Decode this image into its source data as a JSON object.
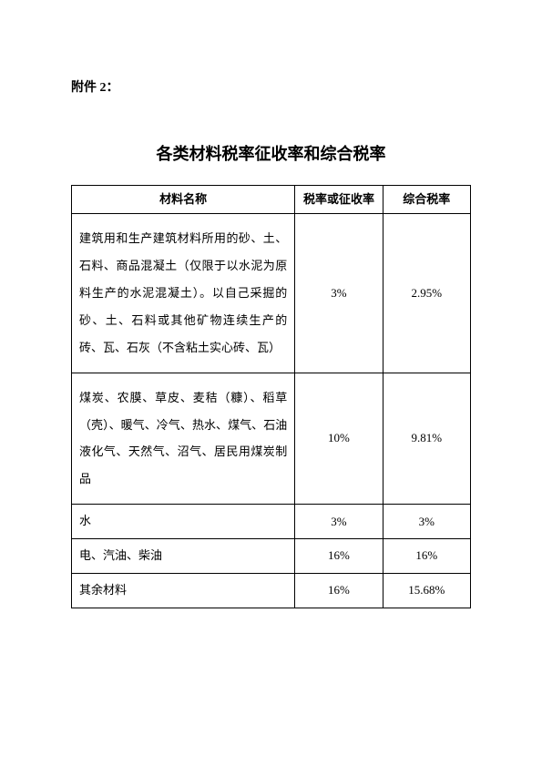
{
  "attachment_label": "附件 2：",
  "title": "各类材料税率征收率和综合税率",
  "table": {
    "columns": [
      "材料名称",
      "税率或征收率",
      "综合税率"
    ],
    "rows": [
      {
        "material": "建筑用和生产建筑材料所用的砂、土、石料、商品混凝土（仅限于以水泥为原料生产的水泥混凝土）。以自己采掘的砂、土、石料或其他矿物连续生产的砖、瓦、石灰（不含粘土实心砖、瓦）",
        "rate": "3%",
        "composite_rate": "2.95%",
        "tall": true
      },
      {
        "material": "煤炭、农膜、草皮、麦秸（糠）、稻草（壳）、暖气、冷气、热水、煤气、石油液化气、天然气、沼气、居民用煤炭制品",
        "rate": "10%",
        "composite_rate": "9.81%",
        "tall": true
      },
      {
        "material": "水",
        "rate": "3%",
        "composite_rate": "3%",
        "tall": false
      },
      {
        "material": "电、汽油、柴油",
        "rate": "16%",
        "composite_rate": "16%",
        "tall": false
      },
      {
        "material": "其余材料",
        "rate": "16%",
        "composite_rate": "15.68%",
        "tall": false
      }
    ]
  }
}
